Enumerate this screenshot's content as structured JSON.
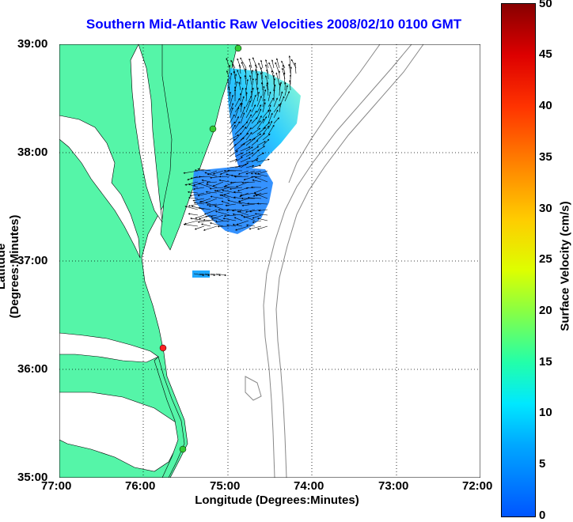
{
  "title": "Southern Mid-Atlantic Raw Velocities 2008/02/10 0100 GMT",
  "axes": {
    "xlabel": "Longitude (Degrees:Minutes)",
    "ylabel": "Latitude (Degrees:Minutes)",
    "x_ticks": [
      "77:00",
      "76:00",
      "75:00",
      "74:00",
      "73:00",
      "72:00"
    ],
    "y_ticks": [
      "39:00",
      "38:00",
      "37:00",
      "36:00",
      "35:00"
    ],
    "grid": "dotted"
  },
  "colorbar": {
    "label": "Surface Velocity (cm/s)",
    "ticks": [
      "50",
      "45",
      "40",
      "35",
      "30",
      "25",
      "20",
      "15",
      "10",
      "5",
      "0"
    ],
    "range": [
      0,
      50
    ]
  },
  "colors": {
    "land": "#55f5a8",
    "water": "#ffffff",
    "title": "#0000ff",
    "bathymetry": "#888888",
    "field_low": "#1e6bff",
    "field_high": "#8fffd0"
  },
  "stations": [
    {
      "name": "north-station",
      "color": "#33cc33"
    },
    {
      "name": "cape-charles-station",
      "color": "#33cc33"
    },
    {
      "name": "duck-station",
      "color": "#ff2222"
    },
    {
      "name": "hatteras-station",
      "color": "#33cc33"
    }
  ]
}
